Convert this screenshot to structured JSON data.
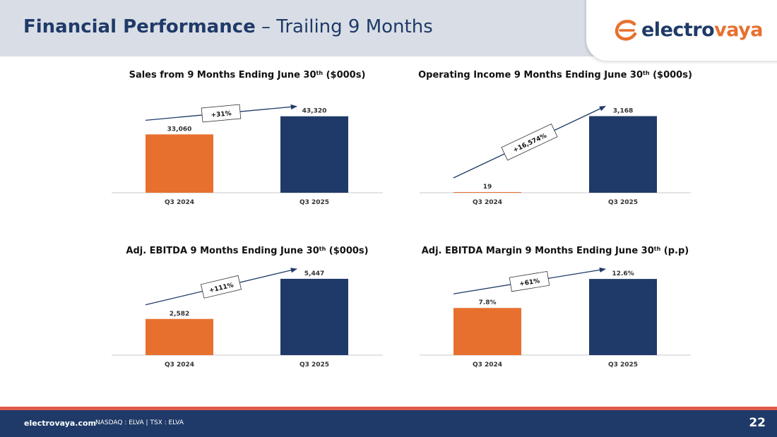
{
  "header": {
    "title_bold": "Financial Performance",
    "title_rest": "– Trailing 9 Months"
  },
  "logo": {
    "text_part1": "electro",
    "text_part2": "vaya"
  },
  "colors": {
    "orange": "#e8702f",
    "navy": "#1f3a68",
    "header_band": "#d9dee6",
    "footer_stripe": "#e05a4a"
  },
  "chart_data": [
    {
      "type": "bar",
      "title": "Sales from 9 Months Ending June 30",
      "title_sup": "th",
      "title_suffix": "($000s)",
      "categories": [
        "Q3 2024",
        "Q3 2025"
      ],
      "values": [
        33060,
        43320
      ],
      "value_labels": [
        "33,060",
        "43,320"
      ],
      "ylim": [
        0,
        50000
      ],
      "growth_label": "+31%",
      "grid": false
    },
    {
      "type": "bar",
      "title": "Operating Income 9 Months Ending June 30",
      "title_sup": "th",
      "title_suffix": "($000s)",
      "categories": [
        "Q3 2024",
        "Q3 2025"
      ],
      "values": [
        19,
        3168
      ],
      "value_labels": [
        "19",
        "3,168"
      ],
      "ylim": [
        0,
        3650
      ],
      "growth_label": "+16,574%",
      "grid": false
    },
    {
      "type": "bar",
      "title": "Adj. EBITDA 9 Months Ending June 30",
      "title_sup": "th",
      "title_suffix": "($000s)",
      "categories": [
        "Q3 2024",
        "Q3 2025"
      ],
      "values": [
        2582,
        5447
      ],
      "value_labels": [
        "2,582",
        "5,447"
      ],
      "ylim": [
        0,
        6300
      ],
      "growth_label": "+111%",
      "grid": false
    },
    {
      "type": "bar",
      "title": "Adj. EBITDA Margin 9 Months Ending June 30",
      "title_sup": "th",
      "title_suffix": "(p.p)",
      "categories": [
        "Q3 2024",
        "Q3 2025"
      ],
      "values": [
        7.8,
        12.6
      ],
      "value_labels": [
        "7.8%",
        "12.6%"
      ],
      "ylim": [
        0,
        14.6
      ],
      "growth_label": "+61%",
      "grid": false
    }
  ],
  "footer": {
    "site": "electrovaya.com",
    "ticker": "NASDAQ : ELVA  |  TSX : ELVA",
    "page_number": "22"
  }
}
